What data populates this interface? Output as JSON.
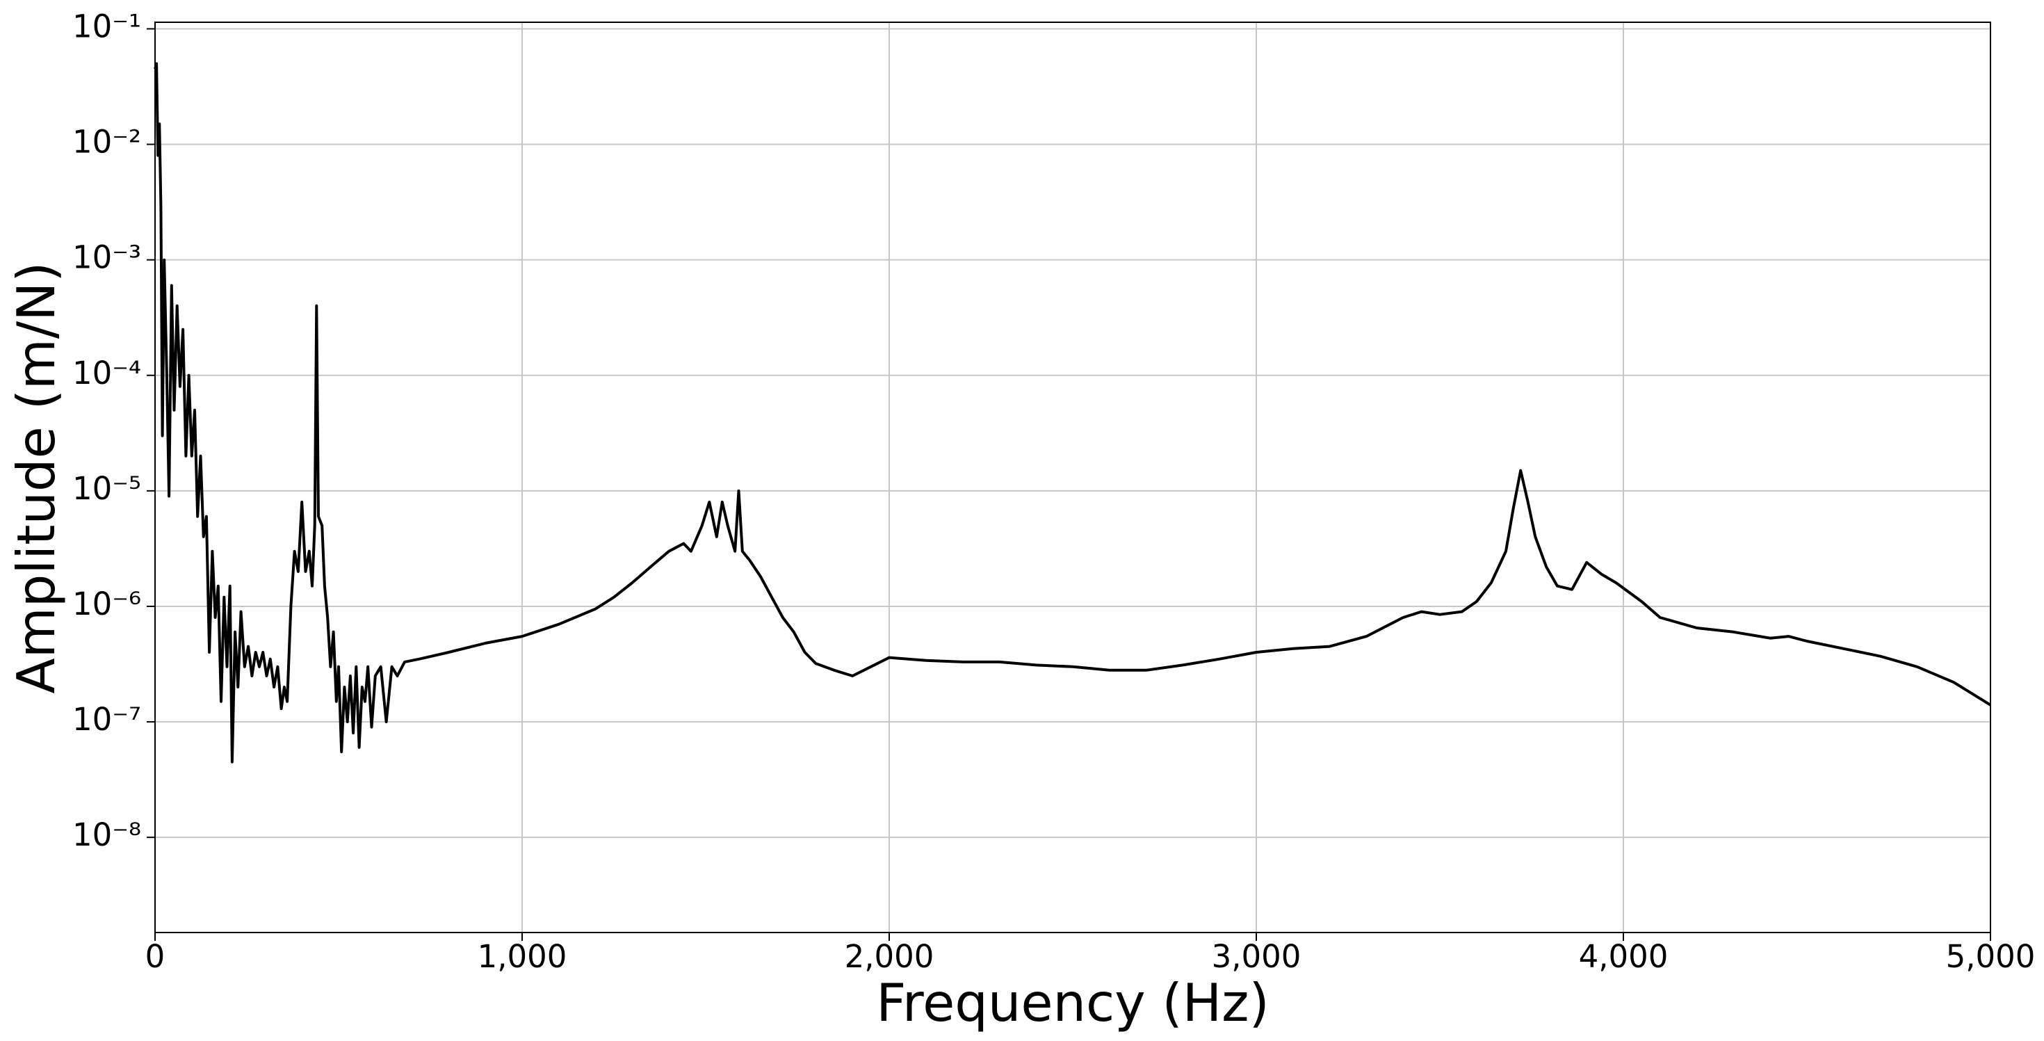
{
  "chart_data": {
    "type": "line",
    "xlabel": "Frequency (Hz)",
    "ylabel": "Amplitude (m/N)",
    "yscale": "log",
    "grid": true,
    "xlim": [
      0,
      5000
    ],
    "ylim": [
      1.5e-09,
      0.114
    ],
    "xticks": [
      0,
      {
        "value": 1000,
        "label": "1,000"
      },
      {
        "value": 2000,
        "label": "2,000"
      },
      {
        "value": 3000,
        "label": "3,000"
      },
      {
        "value": 4000,
        "label": "4,000"
      },
      {
        "value": 5000,
        "label": "5,000"
      }
    ],
    "yticks": [
      {
        "value": 1e-08,
        "label": "10⁻⁸"
      },
      {
        "value": 1e-07,
        "label": "10⁻⁷"
      },
      {
        "value": 1e-06,
        "label": "10⁻⁶"
      },
      {
        "value": 1e-05,
        "label": "10⁻⁵"
      },
      {
        "value": 0.0001,
        "label": "10⁻⁴"
      },
      {
        "value": 0.001,
        "label": "10⁻³"
      },
      {
        "value": 0.01,
        "label": "10⁻²"
      },
      {
        "value": 0.1,
        "label": "10⁻¹"
      }
    ],
    "series": [
      {
        "color": "#000000",
        "x": [
          0,
          4,
          8,
          12,
          16,
          20,
          25,
          32,
          38,
          45,
          52,
          60,
          68,
          76,
          84,
          92,
          100,
          108,
          116,
          124,
          132,
          140,
          148,
          156,
          164,
          172,
          180,
          188,
          196,
          204,
          210,
          218,
          226,
          234,
          244,
          254,
          264,
          274,
          284,
          294,
          304,
          314,
          324,
          334,
          344,
          352,
          360,
          370,
          380,
          390,
          400,
          410,
          420,
          428,
          435,
          440,
          445,
          455,
          462,
          470,
          478,
          486,
          494,
          500,
          508,
          516,
          524,
          532,
          540,
          548,
          556,
          564,
          572,
          580,
          590,
          600,
          615,
          630,
          645,
          660,
          680,
          720,
          800,
          900,
          1000,
          1100,
          1200,
          1250,
          1300,
          1350,
          1400,
          1440,
          1460,
          1490,
          1510,
          1530,
          1545,
          1560,
          1580,
          1590,
          1600,
          1620,
          1650,
          1680,
          1710,
          1740,
          1770,
          1800,
          1850,
          1900,
          1950,
          2000,
          2100,
          2200,
          2300,
          2400,
          2500,
          2600,
          2700,
          2800,
          2900,
          3000,
          3100,
          3200,
          3300,
          3400,
          3450,
          3500,
          3560,
          3600,
          3640,
          3680,
          3700,
          3720,
          3740,
          3760,
          3790,
          3820,
          3860,
          3900,
          3940,
          3980,
          4050,
          4100,
          4200,
          4300,
          4400,
          4450,
          4500,
          4600,
          4700,
          4800,
          4900,
          5000
        ],
        "values": [
          0.045,
          0.05,
          0.008,
          0.015,
          0.003,
          3e-05,
          0.001,
          0.0001,
          9e-06,
          0.0006,
          5e-05,
          0.0004,
          8e-05,
          0.00025,
          2e-05,
          0.0001,
          2e-05,
          5e-05,
          6e-06,
          2e-05,
          4e-06,
          6e-06,
          4e-07,
          3e-06,
          8e-07,
          1.5e-06,
          1.5e-07,
          1.2e-06,
          3e-07,
          1.5e-06,
          4.5e-08,
          6e-07,
          2e-07,
          9e-07,
          3e-07,
          4.5e-07,
          2.5e-07,
          4e-07,
          3e-07,
          4e-07,
          2.5e-07,
          3.5e-07,
          2e-07,
          3e-07,
          1.3e-07,
          2e-07,
          1.5e-07,
          1e-06,
          3e-06,
          2e-06,
          8e-06,
          2e-06,
          3e-06,
          1.5e-06,
          5e-06,
          0.0004,
          6e-06,
          5e-06,
          1.5e-06,
          8e-07,
          3e-07,
          6e-07,
          1.5e-07,
          3e-07,
          5.5e-08,
          2e-07,
          1e-07,
          2.5e-07,
          8e-08,
          3e-07,
          6e-08,
          2e-07,
          1.5e-07,
          3e-07,
          9e-08,
          2.5e-07,
          3e-07,
          1e-07,
          3e-07,
          2.5e-07,
          3.3e-07,
          3.5e-07,
          4e-07,
          4.8e-07,
          5.5e-07,
          7e-07,
          9.5e-07,
          1.2e-06,
          1.6e-06,
          2.2e-06,
          3e-06,
          3.5e-06,
          3e-06,
          5e-06,
          8e-06,
          4e-06,
          8e-06,
          5e-06,
          3e-06,
          1e-05,
          3e-06,
          2.5e-06,
          1.8e-06,
          1.2e-06,
          8e-07,
          6e-07,
          4e-07,
          3.2e-07,
          2.8e-07,
          2.5e-07,
          3e-07,
          3.6e-07,
          3.4e-07,
          3.3e-07,
          3.3e-07,
          3.1e-07,
          3e-07,
          2.8e-07,
          2.8e-07,
          3.1e-07,
          3.5e-07,
          4e-07,
          4.3e-07,
          4.5e-07,
          5.5e-07,
          8e-07,
          9e-07,
          8.5e-07,
          9e-07,
          1.1e-06,
          1.6e-06,
          3e-06,
          7e-06,
          1.5e-05,
          8e-06,
          4e-06,
          2.2e-06,
          1.5e-06,
          1.4e-06,
          2.4e-06,
          1.9e-06,
          1.6e-06,
          1.1e-06,
          8e-07,
          6.5e-07,
          6e-07,
          5.3e-07,
          5.5e-07,
          5e-07,
          4.3e-07,
          3.7e-07,
          3e-07,
          2.2e-07,
          1.4e-07
        ]
      }
    ]
  }
}
